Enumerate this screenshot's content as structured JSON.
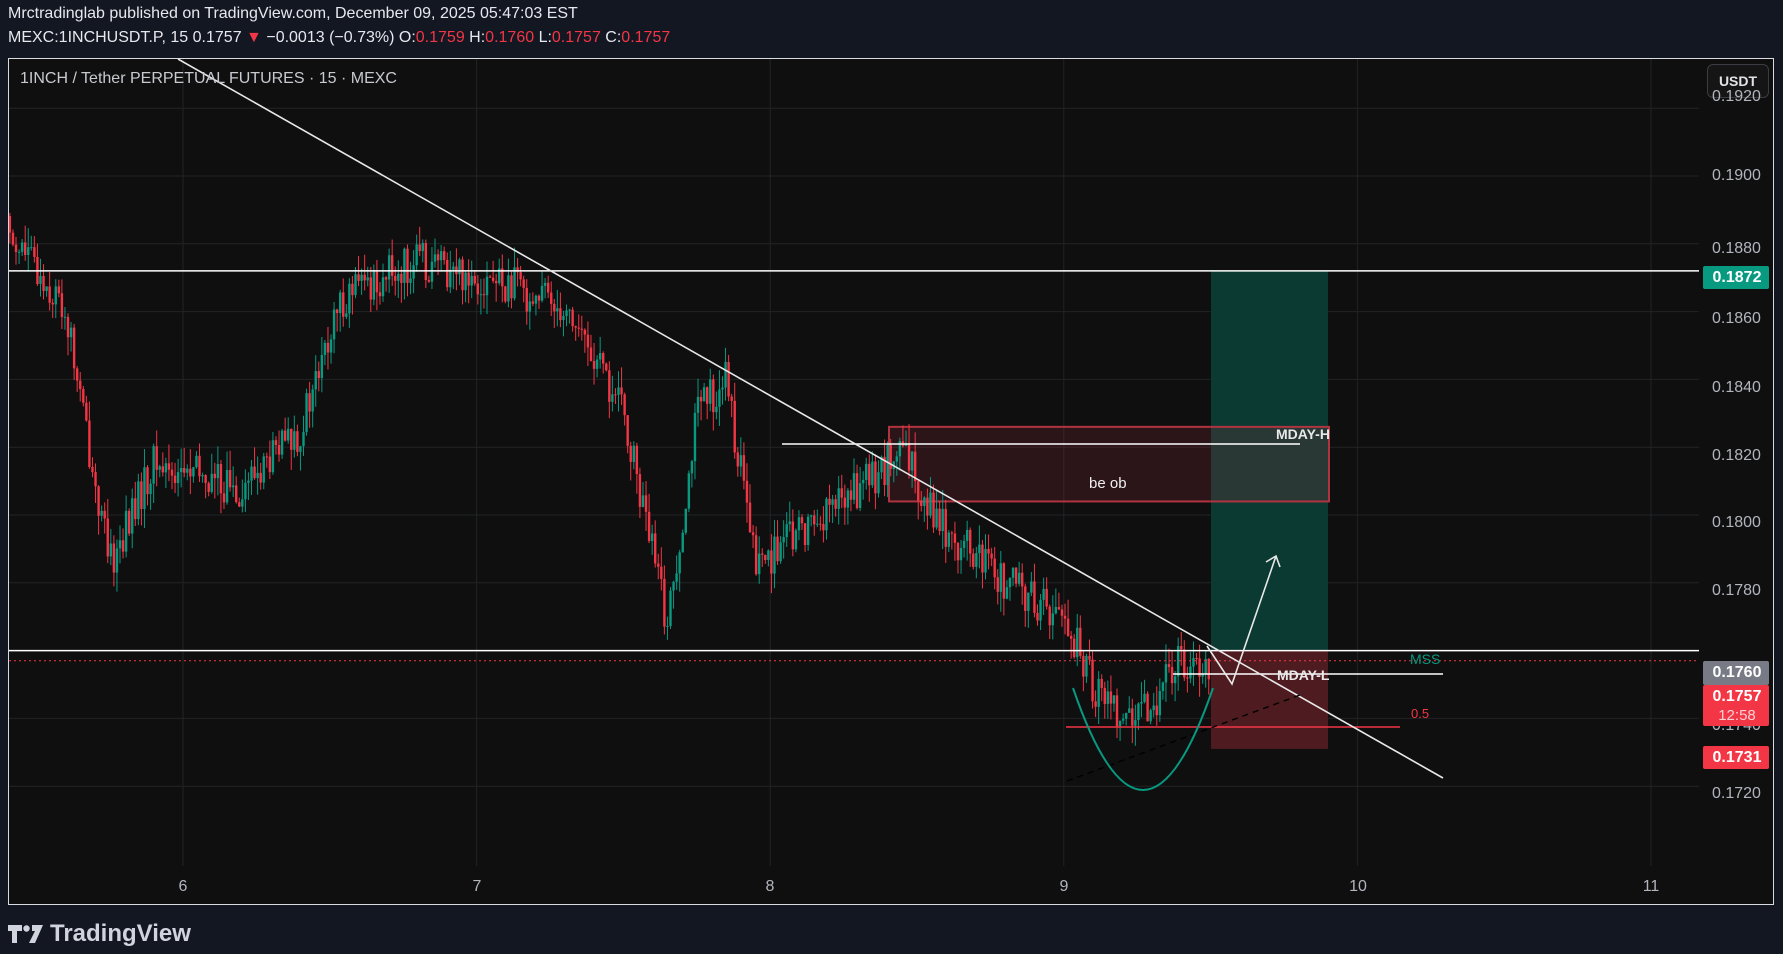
{
  "header": {
    "publish_line": "Mrctradinglab published on TradingView.com, December 09, 2025 05:47:03 EST",
    "symbol": "MEXC:1INCHUSDT.P, 15",
    "last": "0.1757",
    "change": "−0.0013 (−0.73%)",
    "o_label": "O:",
    "o": "0.1759",
    "h_label": "H:",
    "h": "0.1760",
    "l_label": "L:",
    "l": "0.1757",
    "c_label": "C:",
    "c": "0.1757",
    "down_arrow": "▼"
  },
  "chart_title": "1INCH / Tether PERPETUAL FUTURES · 15 · MEXC",
  "currency_button": "USDT",
  "price_axis": {
    "labels": [
      "0.1920",
      "0.1900",
      "0.1880",
      "0.1860",
      "0.1840",
      "0.1820",
      "0.1800",
      "0.1780",
      "0.1740",
      "0.1720"
    ],
    "tags": {
      "target": "0.1872",
      "entry": "0.1760",
      "last": "0.1757",
      "countdown": "12:58",
      "stop": "0.1731"
    }
  },
  "time_axis": {
    "labels": [
      "6",
      "7",
      "8",
      "9",
      "10",
      "11"
    ]
  },
  "annotations": {
    "mday_h": "MDAY-H",
    "mday_l": "MDAY-L",
    "box": "be ob",
    "mss": "MSS",
    "fib": "0.5"
  },
  "colors": {
    "up": "#089981",
    "down": "#f23645",
    "target_zone": "#0b3a33",
    "stop_zone": "#4e1b20",
    "ob_border": "#b03440"
  },
  "branding": "TradingView",
  "chart_data": {
    "type": "candlestick",
    "title": "1INCH / Tether PERPETUAL FUTURES · 15 · MEXC",
    "xlabel": "",
    "ylabel": "USDT",
    "x_ticks": [
      "6",
      "7",
      "8",
      "9",
      "10",
      "11"
    ],
    "ylim": [
      0.1705,
      0.1925
    ],
    "grid": true,
    "approx_close_path": [
      {
        "day": 5.4,
        "price": 0.1885
      },
      {
        "day": 5.6,
        "price": 0.186
      },
      {
        "day": 5.75,
        "price": 0.1785
      },
      {
        "day": 5.9,
        "price": 0.1815
      },
      {
        "day": 6.2,
        "price": 0.1808
      },
      {
        "day": 6.4,
        "price": 0.1825
      },
      {
        "day": 6.55,
        "price": 0.1865
      },
      {
        "day": 6.8,
        "price": 0.1875
      },
      {
        "day": 7.1,
        "price": 0.1868
      },
      {
        "day": 7.3,
        "price": 0.1862
      },
      {
        "day": 7.5,
        "price": 0.183
      },
      {
        "day": 7.65,
        "price": 0.1768
      },
      {
        "day": 7.75,
        "price": 0.183
      },
      {
        "day": 7.85,
        "price": 0.184
      },
      {
        "day": 7.95,
        "price": 0.1785
      },
      {
        "day": 8.1,
        "price": 0.1795
      },
      {
        "day": 8.3,
        "price": 0.1808
      },
      {
        "day": 8.45,
        "price": 0.1818
      },
      {
        "day": 8.6,
        "price": 0.1795
      },
      {
        "day": 8.8,
        "price": 0.178
      },
      {
        "day": 9.0,
        "price": 0.177
      },
      {
        "day": 9.1,
        "price": 0.175
      },
      {
        "day": 9.25,
        "price": 0.1738
      },
      {
        "day": 9.4,
        "price": 0.1758
      },
      {
        "day": 9.5,
        "price": 0.1757
      }
    ],
    "horizontal_levels": [
      0.1872,
      0.176
    ],
    "position": {
      "type": "long",
      "entry": 0.176,
      "target": 0.1872,
      "stop": 0.1731
    },
    "order_block": {
      "label": "be ob",
      "top": 0.1826,
      "bottom": 0.1804
    },
    "annotations": [
      "MDAY-H",
      "MDAY-L",
      "MSS",
      "0.5",
      "be ob"
    ],
    "last_price": 0.1757
  }
}
